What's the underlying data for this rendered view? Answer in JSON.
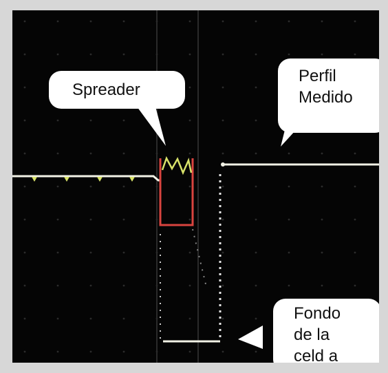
{
  "labels": {
    "spreader": "Spreader",
    "perfil": "Perfil\nMedido",
    "fondo": "Fondo\nde la\nceld a"
  },
  "colors": {
    "screen_bg": "#050505",
    "frame": "#d7d7d7",
    "trace_main": "#f2f2e6",
    "trace_yellow": "#d8e26a",
    "spreader_red": "#d9443f",
    "grid": "#2c2c2c"
  }
}
